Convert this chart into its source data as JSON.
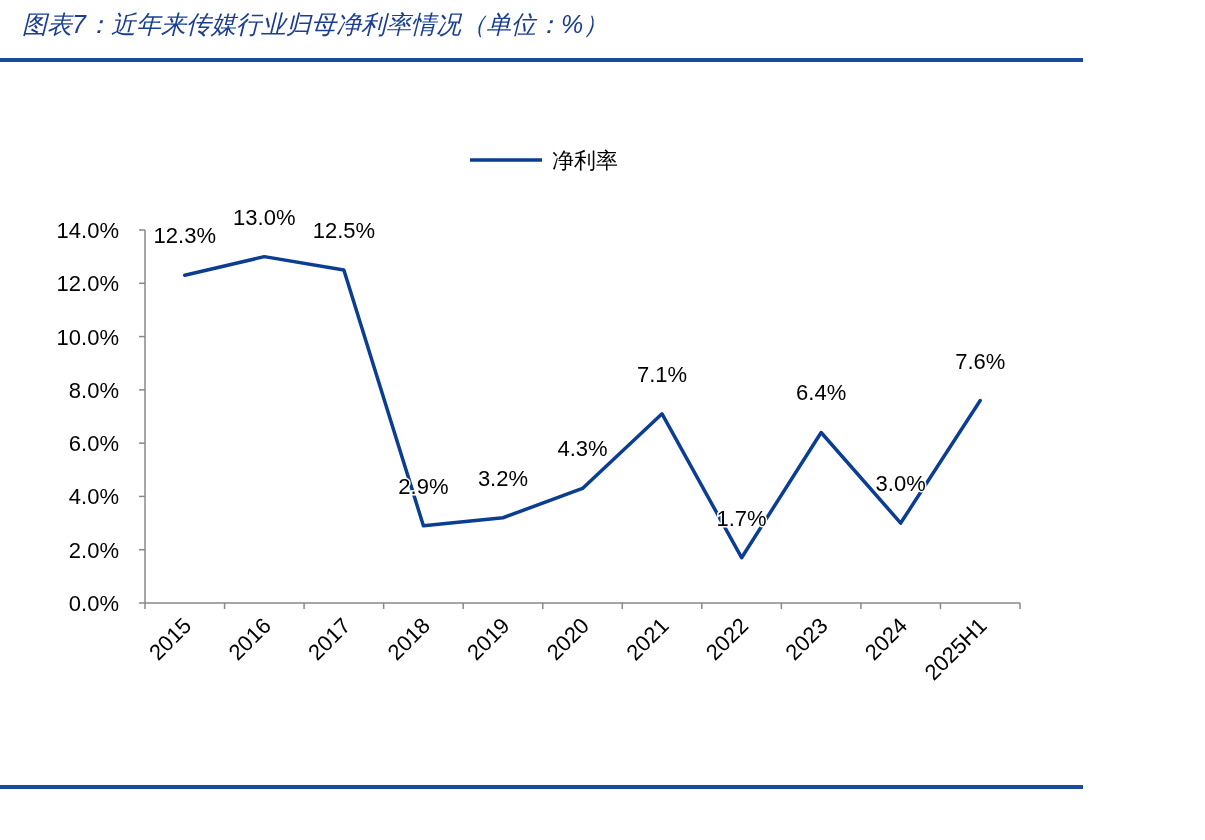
{
  "chart_data": {
    "type": "line",
    "title": "图表7：近年来传媒行业归母净利率情况（单位：%）",
    "categories": [
      "2015",
      "2016",
      "2017",
      "2018",
      "2019",
      "2020",
      "2021",
      "2022",
      "2023",
      "2024",
      "2025H1"
    ],
    "series": [
      {
        "name": "净利率",
        "color": "#0b3d91",
        "values": [
          12.3,
          13.0,
          12.5,
          2.9,
          3.2,
          4.3,
          7.1,
          1.7,
          6.4,
          3.0,
          7.6
        ],
        "value_labels": [
          "12.3%",
          "13.0%",
          "12.5%",
          "2.9%",
          "3.2%",
          "4.3%",
          "7.1%",
          "1.7%",
          "6.4%",
          "3.0%",
          "7.6%"
        ]
      }
    ],
    "ylim": [
      0,
      14
    ],
    "yticks": [
      {
        "value": 0,
        "label": "0.0%"
      },
      {
        "value": 2,
        "label": "2.0%"
      },
      {
        "value": 4,
        "label": "4.0%"
      },
      {
        "value": 6,
        "label": "6.0%"
      },
      {
        "value": 8,
        "label": "8.0%"
      },
      {
        "value": 10,
        "label": "10.0%"
      },
      {
        "value": 12,
        "label": "12.0%"
      },
      {
        "value": 14,
        "label": "14.0%"
      }
    ],
    "legend": "top",
    "grid": false,
    "marker": "none"
  }
}
